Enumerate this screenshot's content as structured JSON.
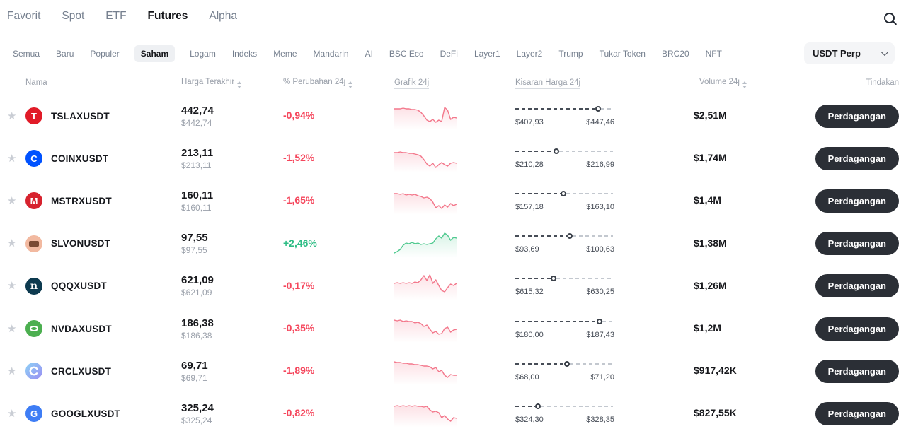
{
  "nav": {
    "tabs": [
      {
        "label": "Favorit",
        "active": false
      },
      {
        "label": "Spot",
        "active": false
      },
      {
        "label": "ETF",
        "active": false
      },
      {
        "label": "Futures",
        "active": true
      },
      {
        "label": "Alpha",
        "active": false
      }
    ],
    "search_icon": "magnifier"
  },
  "filters": {
    "items": [
      {
        "label": "Semua",
        "active": false
      },
      {
        "label": "Baru",
        "active": false
      },
      {
        "label": "Populer",
        "active": false
      },
      {
        "label": "Saham",
        "active": true
      },
      {
        "label": "Logam",
        "active": false
      },
      {
        "label": "Indeks",
        "active": false
      },
      {
        "label": "Meme",
        "active": false
      },
      {
        "label": "Mandarin",
        "active": false
      },
      {
        "label": "AI",
        "active": false
      },
      {
        "label": "BSC Eco",
        "active": false
      },
      {
        "label": "DeFi",
        "active": false
      },
      {
        "label": "Layer1",
        "active": false
      },
      {
        "label": "Layer2",
        "active": false
      },
      {
        "label": "Trump",
        "active": false
      },
      {
        "label": "Tukar Token",
        "active": false
      },
      {
        "label": "BRC20",
        "active": false
      },
      {
        "label": "NFT",
        "active": false
      }
    ],
    "quote_select": {
      "value": "USDT Perp",
      "chevron_icon": "chevron-down"
    }
  },
  "table": {
    "headers": {
      "nama": "Nama",
      "harga": "Harga Terakhir",
      "perubahan": "% Perubahan 24j",
      "grafik": "Grafik 24j",
      "kisaran": "Kisaran Harga 24j",
      "volume": "Volume 24j",
      "tindakan": "Tindakan"
    },
    "action_label": "Perdagangan",
    "colors": {
      "up": "#2ebd85",
      "down": "#f5465c",
      "spark_up": "#4fc98f",
      "spark_down": "#f3778b",
      "button": "#2b2f36"
    },
    "rows": [
      {
        "symbol": "TSLAXUSDT",
        "icon": {
          "name": "tesla-logo",
          "type": "letter",
          "glyph": "T",
          "bg": "#e11b28"
        },
        "price": "442,74",
        "price_usd": "$442,74",
        "change": "-0,94%",
        "direction": "down",
        "spark": {
          "points": [
            10,
            10,
            10,
            9,
            10,
            10,
            11,
            11,
            12,
            15,
            20,
            26,
            28,
            25,
            29,
            26,
            28,
            8,
            12,
            25,
            22,
            23
          ]
        },
        "range": {
          "low": "$407,93",
          "high": "$447,46",
          "position": 0.85
        },
        "volume": "$2,51M"
      },
      {
        "symbol": "COINXUSDT",
        "icon": {
          "name": "coinbase-logo",
          "type": "letter",
          "glyph": "C",
          "bg": "#0052ff"
        },
        "price": "213,11",
        "price_usd": "$213,11",
        "change": "-1,52%",
        "direction": "down",
        "spark": {
          "points": [
            12,
            12,
            11,
            12,
            12,
            13,
            13,
            14,
            15,
            17,
            22,
            28,
            31,
            27,
            33,
            29,
            26,
            29,
            31,
            27,
            26,
            27
          ]
        },
        "range": {
          "low": "$210,28",
          "high": "$216,99",
          "position": 0.42
        },
        "volume": "$1,74M"
      },
      {
        "symbol": "MSTRXUSDT",
        "icon": {
          "name": "microstrategy-logo",
          "type": "letter",
          "glyph": "M",
          "bg": "#d7222e"
        },
        "price": "160,11",
        "price_usd": "$160,11",
        "change": "-1,65%",
        "direction": "down",
        "spark": {
          "points": [
            10,
            10,
            11,
            10,
            12,
            11,
            12,
            11,
            13,
            14,
            16,
            15,
            17,
            22,
            30,
            27,
            31,
            26,
            29,
            24,
            27,
            25
          ]
        },
        "range": {
          "low": "$157,18",
          "high": "$163,10",
          "position": 0.49
        },
        "volume": "$1,4M"
      },
      {
        "symbol": "SLVONUSDT",
        "icon": {
          "name": "silver-bar-logo",
          "type": "bar",
          "bg": "#f2b9a0"
        },
        "price": "97,55",
        "price_usd": "$97,55",
        "change": "+2,46%",
        "direction": "up",
        "spark": {
          "points": [
            33,
            31,
            28,
            22,
            19,
            20,
            18,
            20,
            19,
            21,
            20,
            21,
            20,
            19,
            13,
            9,
            12,
            5,
            8,
            15,
            11,
            12
          ]
        },
        "range": {
          "low": "$93,69",
          "high": "$100,63",
          "position": 0.56
        },
        "volume": "$1,38M"
      },
      {
        "symbol": "QQQXUSDT",
        "icon": {
          "name": "nasdaq-logo",
          "type": "letter",
          "glyph": "n",
          "serif": true,
          "bg": "#0d3a4f"
        },
        "price": "621,09",
        "price_usd": "$621,09",
        "change": "-0,17%",
        "direction": "down",
        "spark": {
          "points": [
            16,
            15,
            16,
            15,
            16,
            15,
            16,
            14,
            15,
            11,
            5,
            12,
            4,
            16,
            11,
            19,
            26,
            28,
            22,
            17,
            19,
            16
          ]
        },
        "range": {
          "low": "$615,32",
          "high": "$630,25",
          "position": 0.39
        },
        "volume": "$1,26M"
      },
      {
        "symbol": "NVDAXUSDT",
        "icon": {
          "name": "nvidia-logo",
          "type": "eye",
          "bg": "#4caf50"
        },
        "price": "186,38",
        "price_usd": "$186,38",
        "change": "-0,35%",
        "direction": "down",
        "spark": {
          "points": [
            8,
            9,
            8,
            10,
            9,
            10,
            10,
            12,
            11,
            13,
            17,
            15,
            21,
            26,
            24,
            28,
            27,
            20,
            18,
            25,
            22,
            21
          ]
        },
        "range": {
          "low": "$180,00",
          "high": "$187,43",
          "position": 0.86
        },
        "volume": "$1,2M"
      },
      {
        "symbol": "CRCLXUSDT",
        "icon": {
          "name": "circle-logo",
          "type": "ring",
          "bg": "linear-gradient(135deg,#8ed2f6,#9a8df2)"
        },
        "price": "69,71",
        "price_usd": "$69,71",
        "change": "-1,89%",
        "direction": "down",
        "spark": {
          "points": [
            7,
            8,
            8,
            9,
            9,
            10,
            10,
            11,
            11,
            12,
            13,
            13,
            14,
            17,
            15,
            21,
            19,
            26,
            29,
            25,
            26,
            26
          ]
        },
        "range": {
          "low": "$68,00",
          "high": "$71,20",
          "position": 0.53
        },
        "volume": "$917,42K"
      },
      {
        "symbol": "GOOGLXUSDT",
        "icon": {
          "name": "google-logo",
          "type": "letter",
          "glyph": "G",
          "bg": "#3e7df5"
        },
        "price": "325,24",
        "price_usd": "$325,24",
        "change": "-0,82%",
        "direction": "down",
        "spark": {
          "points": [
            10,
            9,
            10,
            9,
            10,
            9,
            10,
            9,
            10,
            10,
            11,
            10,
            15,
            18,
            17,
            19,
            26,
            23,
            28,
            31,
            26,
            27
          ]
        },
        "range": {
          "low": "$324,30",
          "high": "$328,35",
          "position": 0.23
        },
        "volume": "$827,55K"
      }
    ]
  }
}
